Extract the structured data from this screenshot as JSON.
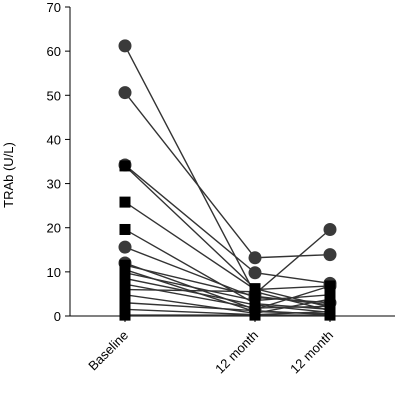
{
  "chart_data": {
    "type": "line",
    "title": "",
    "xlabel": "",
    "ylabel": "TRAb (U/L)",
    "ylim": [
      0,
      70
    ],
    "yticks": [
      0,
      10,
      20,
      30,
      40,
      50,
      60,
      70
    ],
    "categories": [
      "Baseline",
      "12 month",
      "12 month"
    ],
    "grid": false,
    "legend": "none",
    "line_color": "#333333",
    "marker_color": "#000000",
    "circle_marker_color": "#3a3a3a",
    "series": [
      {
        "marker": "circle",
        "values": [
          61.2,
          5.0,
          19.6
        ]
      },
      {
        "marker": "circle",
        "values": [
          50.6,
          13.2,
          13.9
        ]
      },
      {
        "marker": "circle",
        "values": [
          34.2,
          9.8,
          7.4
        ]
      },
      {
        "marker": "circle",
        "values": [
          15.6,
          4.2,
          3.0
        ]
      },
      {
        "marker": "circle",
        "values": [
          12.0,
          1.5,
          6.8
        ]
      },
      {
        "marker": "square",
        "values": [
          34.0,
          6.2,
          2.0
        ]
      },
      {
        "marker": "square",
        "values": [
          25.8,
          6.0,
          6.8
        ]
      },
      {
        "marker": "square",
        "values": [
          19.6,
          2.8,
          1.5
        ]
      },
      {
        "marker": "square",
        "values": [
          11.5,
          4.5,
          2.5
        ]
      },
      {
        "marker": "square",
        "values": [
          10.5,
          1.0,
          0.5
        ]
      },
      {
        "marker": "square",
        "values": [
          9.8,
          3.5,
          4.8
        ]
      },
      {
        "marker": "square",
        "values": [
          8.5,
          2.5,
          0.8
        ]
      },
      {
        "marker": "square",
        "values": [
          7.2,
          1.8,
          2.2
        ]
      },
      {
        "marker": "square",
        "values": [
          6.0,
          5.5,
          1.2
        ]
      },
      {
        "marker": "square",
        "values": [
          4.8,
          0.6,
          3.8
        ]
      },
      {
        "marker": "square",
        "values": [
          3.0,
          1.2,
          0.3
        ]
      },
      {
        "marker": "square",
        "values": [
          1.5,
          0.3,
          1.0
        ]
      },
      {
        "marker": "square",
        "values": [
          0.2,
          0.2,
          0.2
        ]
      }
    ]
  }
}
